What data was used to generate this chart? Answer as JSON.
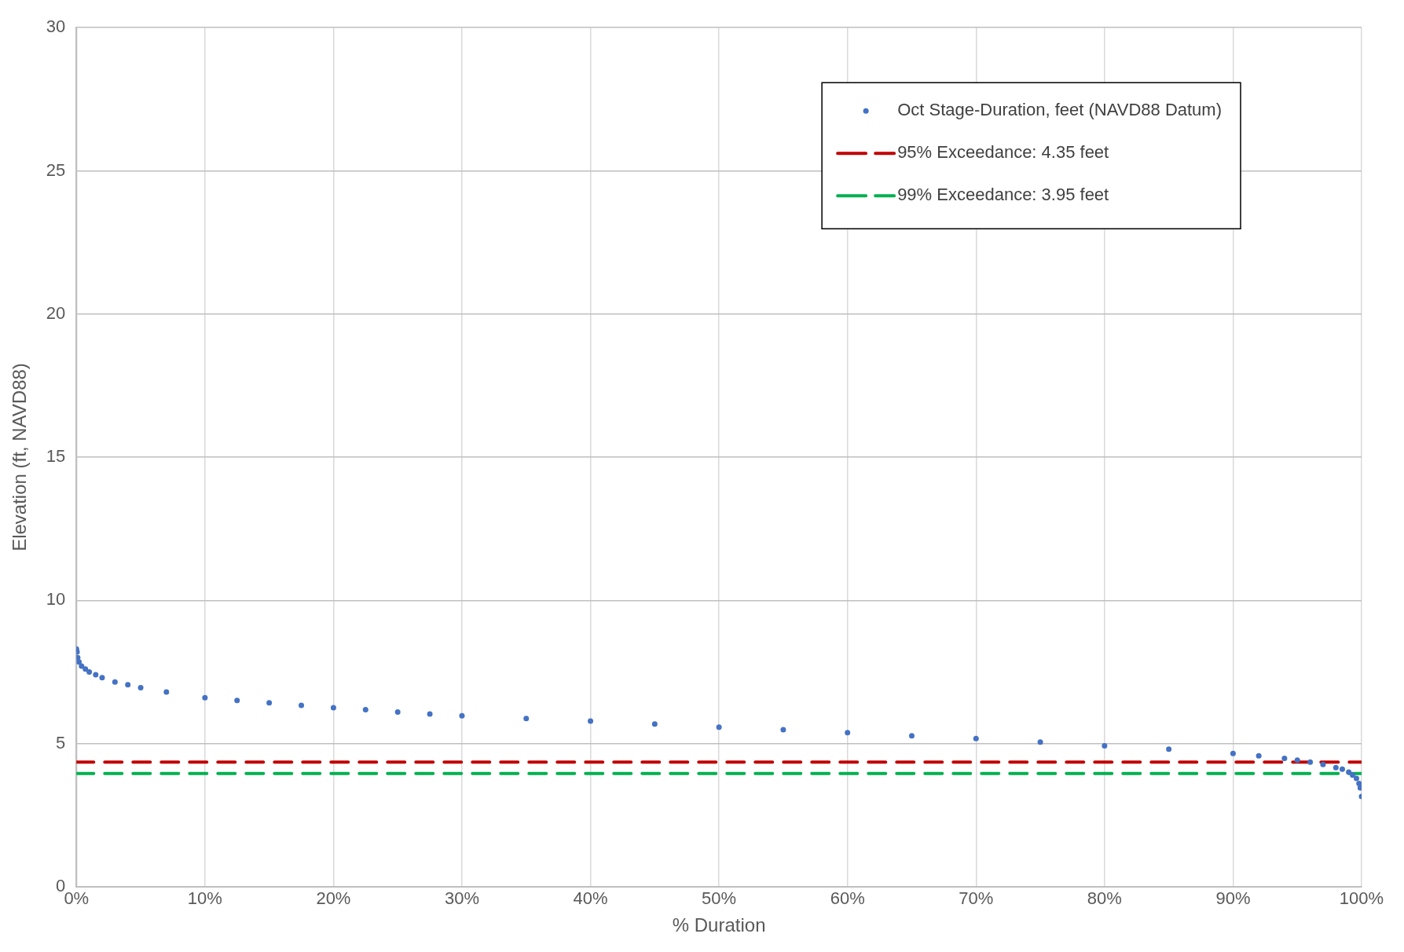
{
  "chart_data": {
    "type": "scatter",
    "xlabel": "% Duration",
    "ylabel": "Elevation (ft, NAVD88)",
    "xlim": [
      0,
      100
    ],
    "ylim": [
      0,
      30
    ],
    "xticks": [
      {
        "value": 0,
        "label": "0%"
      },
      {
        "value": 10,
        "label": "10%"
      },
      {
        "value": 20,
        "label": "20%"
      },
      {
        "value": 30,
        "label": "30%"
      },
      {
        "value": 40,
        "label": "40%"
      },
      {
        "value": 50,
        "label": "50%"
      },
      {
        "value": 60,
        "label": "60%"
      },
      {
        "value": 70,
        "label": "70%"
      },
      {
        "value": 80,
        "label": "80%"
      },
      {
        "value": 90,
        "label": "90%"
      },
      {
        "value": 100,
        "label": "100%"
      }
    ],
    "yticks": [
      0,
      5,
      10,
      15,
      20,
      25,
      30
    ],
    "grid": true,
    "legend": "top right",
    "marker": "circle",
    "series": [
      {
        "name": "Oct Stage-Duration, feet (NAVD88 Datum)",
        "color": "#4472c4",
        "x": [
          0,
          0.05,
          0.1,
          0.2,
          0.4,
          0.7,
          1,
          1.5,
          2,
          3,
          4,
          5,
          7,
          10,
          12.5,
          15,
          17.5,
          20,
          22.5,
          25,
          27.5,
          30,
          35,
          40,
          45,
          50,
          55,
          60,
          65,
          70,
          75,
          80,
          85,
          90,
          92,
          94,
          95,
          96,
          97,
          98,
          98.5,
          99,
          99.3,
          99.6,
          99.8,
          99.9,
          100
        ],
        "values": [
          8.3,
          8.2,
          8.0,
          7.85,
          7.7,
          7.6,
          7.5,
          7.4,
          7.3,
          7.15,
          7.05,
          6.95,
          6.8,
          6.6,
          6.5,
          6.42,
          6.33,
          6.25,
          6.18,
          6.1,
          6.03,
          5.97,
          5.87,
          5.78,
          5.68,
          5.57,
          5.48,
          5.38,
          5.27,
          5.17,
          5.05,
          4.92,
          4.8,
          4.65,
          4.57,
          4.48,
          4.42,
          4.35,
          4.27,
          4.16,
          4.1,
          4.0,
          3.9,
          3.78,
          3.6,
          3.45,
          3.15
        ]
      }
    ],
    "ref_lines": [
      {
        "axis": "y",
        "value": 4.35,
        "label": "95% Exceedance: 4.35 feet",
        "color": "#c00000",
        "line_style": "dashed"
      },
      {
        "axis": "y",
        "value": 3.95,
        "label": "99% Exceedance: 3.95 feet",
        "color": "#00b050",
        "line_style": "dashed"
      }
    ]
  }
}
